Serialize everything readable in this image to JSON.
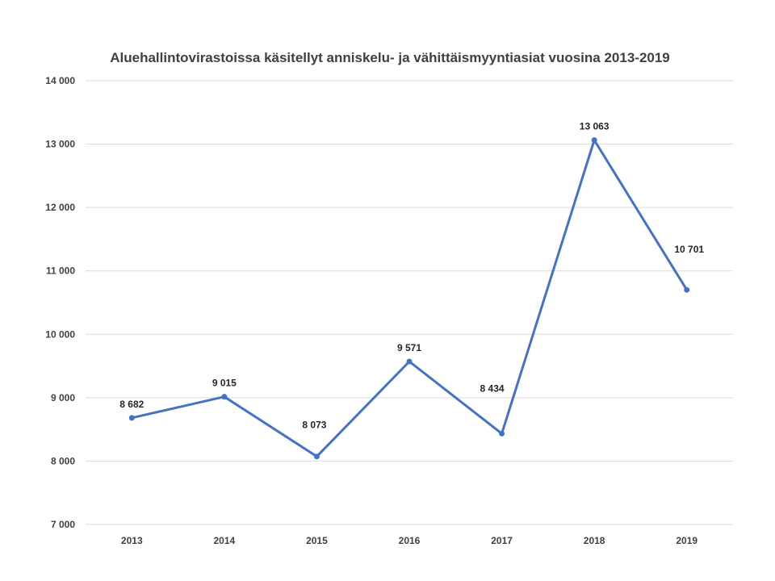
{
  "chart_data": {
    "type": "line",
    "title": "Aluehallintovirastoissa käsitellyt anniskelu- ja vähittäismyyntiasiat vuosina 2013-2019",
    "xlabel": "",
    "ylabel": "",
    "categories": [
      "2013",
      "2014",
      "2015",
      "2016",
      "2017",
      "2018",
      "2019"
    ],
    "series": [
      {
        "values": [
          8682,
          9015,
          8073,
          9571,
          8434,
          13063,
          10701
        ],
        "labels": [
          "8 682",
          "9 015",
          "8 073",
          "9 571",
          "8 434",
          "13 063",
          "10 701"
        ],
        "color": "#4472C4"
      }
    ],
    "ylim": [
      7000,
      14000
    ],
    "yticks": [
      7000,
      8000,
      9000,
      10000,
      11000,
      12000,
      13000,
      14000
    ],
    "ytick_labels": [
      "7 000",
      "8 000",
      "9 000",
      "10 000",
      "11 000",
      "12 000",
      "13 000",
      "14 000"
    ],
    "grid": true,
    "legend": "none"
  }
}
